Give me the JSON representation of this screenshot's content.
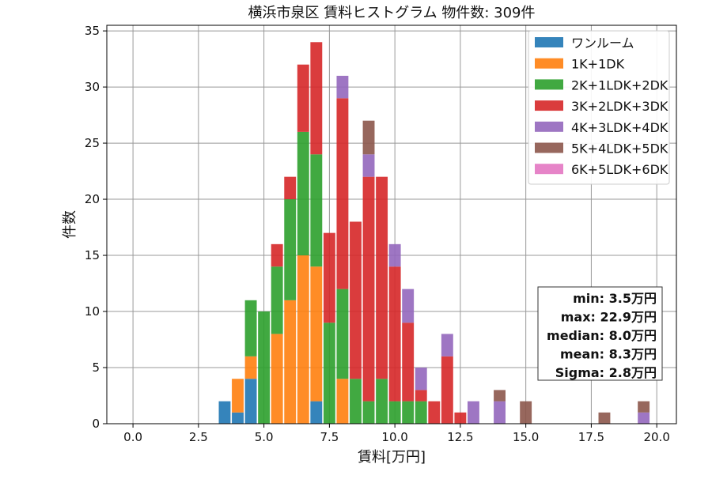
{
  "chart_data": {
    "type": "bar",
    "title": "横浜市泉区 賃料ヒストグラム  物件数: 309件",
    "xlabel": "賃料[万円]",
    "ylabel": "件数",
    "xlim": [
      -1.0,
      20.75
    ],
    "ylim": [
      0,
      35.5
    ],
    "xticks": [
      "0.0",
      "2.5",
      "5.0",
      "7.5",
      "10.0",
      "12.5",
      "15.0",
      "17.5",
      "20.0"
    ],
    "yticks": [
      "0",
      "5",
      "10",
      "15",
      "20",
      "25",
      "30",
      "35"
    ],
    "grid": true,
    "stacked": true,
    "bin_width": 0.5,
    "bin_starts": [
      3.25,
      3.75,
      4.25,
      4.75,
      5.25,
      5.75,
      6.25,
      6.75,
      7.25,
      7.75,
      8.25,
      8.75,
      9.25,
      9.75,
      10.25,
      10.75,
      11.25,
      11.75,
      12.25,
      12.75,
      13.25,
      13.75,
      14.25,
      14.75,
      15.25,
      15.75,
      16.25,
      16.75,
      17.25,
      17.75,
      18.25,
      18.75,
      19.25
    ],
    "legend_position": "top-right",
    "series": [
      {
        "name": "ワンルーム",
        "color": "#1f77b4",
        "values": [
          2,
          1,
          4,
          0,
          0,
          0,
          0,
          2,
          0,
          0,
          0,
          0,
          0,
          0,
          0,
          0,
          0,
          0,
          0,
          0,
          0,
          0,
          0,
          0,
          0,
          0,
          0,
          0,
          0,
          0,
          0,
          0,
          0
        ]
      },
      {
        "name": "1K+1DK",
        "color": "#ff7f0e",
        "values": [
          0,
          3,
          2,
          0,
          8,
          11,
          15,
          12,
          0,
          4,
          0,
          0,
          0,
          0,
          0,
          0,
          0,
          0,
          0,
          0,
          0,
          0,
          0,
          0,
          0,
          0,
          0,
          0,
          0,
          0,
          0,
          0,
          0
        ]
      },
      {
        "name": "2K+1LDK+2DK",
        "color": "#2ca02c",
        "values": [
          0,
          0,
          5,
          10,
          6,
          9,
          11,
          10,
          9,
          8,
          4,
          2,
          4,
          2,
          2,
          2,
          0,
          0,
          0,
          0,
          0,
          0,
          0,
          0,
          0,
          0,
          0,
          0,
          0,
          0,
          0,
          0,
          0
        ]
      },
      {
        "name": "3K+2LDK+3DK",
        "color": "#d62728",
        "values": [
          0,
          0,
          0,
          0,
          2,
          2,
          6,
          10,
          8,
          17,
          14,
          20,
          18,
          12,
          7,
          1,
          2,
          6,
          1,
          0,
          0,
          0,
          0,
          0,
          0,
          0,
          0,
          0,
          0,
          0,
          0,
          0,
          0
        ]
      },
      {
        "name": "4K+3LDK+4DK",
        "color": "#9467bd",
        "values": [
          0,
          0,
          0,
          0,
          0,
          0,
          0,
          0,
          0,
          2,
          0,
          2,
          0,
          2,
          3,
          2,
          0,
          2,
          0,
          2,
          0,
          2,
          0,
          0,
          0,
          0,
          0,
          0,
          0,
          0,
          0,
          0,
          1
        ]
      },
      {
        "name": "5K+4LDK+5DK",
        "color": "#8c564b",
        "values": [
          0,
          0,
          0,
          0,
          0,
          0,
          0,
          0,
          0,
          0,
          0,
          3,
          0,
          0,
          0,
          0,
          0,
          0,
          0,
          0,
          0,
          1,
          0,
          2,
          0,
          0,
          0,
          0,
          0,
          1,
          0,
          0,
          1
        ]
      },
      {
        "name": "6K+5LDK+6DK",
        "color": "#e377c2",
        "values": [
          0,
          0,
          0,
          0,
          0,
          0,
          0,
          0,
          0,
          0,
          0,
          0,
          0,
          0,
          0,
          0,
          0,
          0,
          0,
          0,
          0,
          0,
          0,
          0,
          0,
          0,
          0,
          0,
          0,
          0,
          0,
          0,
          0
        ]
      }
    ],
    "stats": {
      "lines": [
        "min: 3.5万円",
        "max: 22.9万円",
        "median: 8.0万円",
        "mean: 8.3万円",
        "Sigma: 2.8万円"
      ]
    }
  }
}
